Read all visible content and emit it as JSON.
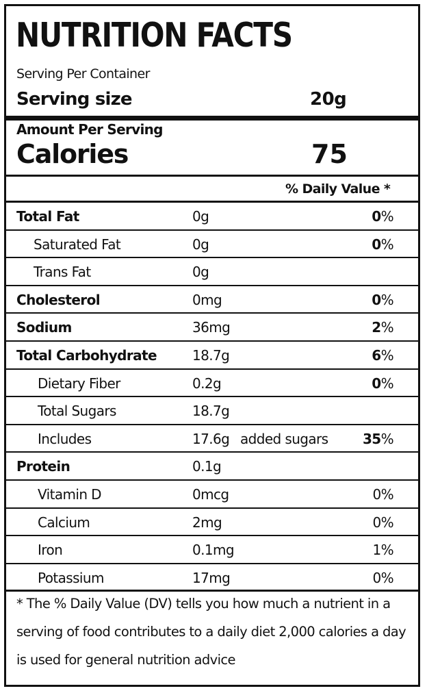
{
  "title": "NUTRITION FACTS",
  "serving_per_container": "Serving Per Container",
  "serving_size": {
    "label": "Serving size",
    "value": "20g"
  },
  "amount_per_serving": "Amount Per Serving",
  "calories": {
    "label": "Calories",
    "value": "75"
  },
  "dv_header": "% Daily Value *",
  "rows": [
    {
      "name": "Total Fat",
      "amount": "0g",
      "extra": "",
      "dv_num": "0",
      "dv_pct": "%",
      "bold": true,
      "indent": 0
    },
    {
      "name": "Saturated Fat",
      "amount": "0g",
      "extra": "",
      "dv_num": "0",
      "dv_pct": "%",
      "bold": false,
      "indent": 1
    },
    {
      "name": "Trans Fat",
      "amount": "0g",
      "extra": "",
      "dv_num": "",
      "dv_pct": "",
      "bold": false,
      "indent": 1
    },
    {
      "name": "Cholesterol",
      "amount": "0mg",
      "extra": "",
      "dv_num": "0",
      "dv_pct": "%",
      "bold": true,
      "indent": 0
    },
    {
      "name": "Sodium",
      "amount": "36mg",
      "extra": "",
      "dv_num": "2",
      "dv_pct": "%",
      "bold": true,
      "indent": 0
    },
    {
      "name": "Total Carbohydrate",
      "amount": "18.7g",
      "extra": "",
      "dv_num": "6",
      "dv_pct": "%",
      "bold": true,
      "indent": 0
    },
    {
      "name": "Dietary Fiber",
      "amount": "0.2g",
      "extra": "",
      "dv_num": "0",
      "dv_pct": "%",
      "bold": false,
      "indent": 2
    },
    {
      "name": "Total Sugars",
      "amount": "18.7g",
      "extra": "",
      "dv_num": "",
      "dv_pct": "",
      "bold": false,
      "indent": 2
    },
    {
      "name": "Includes",
      "amount": "17.6g",
      "extra": "added sugars",
      "dv_num": "35",
      "dv_pct": "%",
      "bold": false,
      "indent": 2
    },
    {
      "name": "Protein",
      "amount": "0.1g",
      "extra": "",
      "dv_num": "",
      "dv_pct": "",
      "bold": true,
      "indent": 0
    },
    {
      "name": "Vitamin D",
      "amount": "0mcg",
      "extra": "",
      "dv_plain": "0%",
      "bold": false,
      "indent": 2
    },
    {
      "name": "Calcium",
      "amount": "2mg",
      "extra": "",
      "dv_plain": "0%",
      "bold": false,
      "indent": 2
    },
    {
      "name": "Iron",
      "amount": "0.1mg",
      "extra": "",
      "dv_plain": "1%",
      "bold": false,
      "indent": 2
    },
    {
      "name": "Potassium",
      "amount": "17mg",
      "extra": "",
      "dv_plain": "0%",
      "bold": false,
      "indent": 2
    }
  ],
  "footnote": "* The % Daily Value (DV) tells you how much a nutrient in a serving of food contributes to a daily diet 2,000 calories a day is used for general nutrition advice"
}
